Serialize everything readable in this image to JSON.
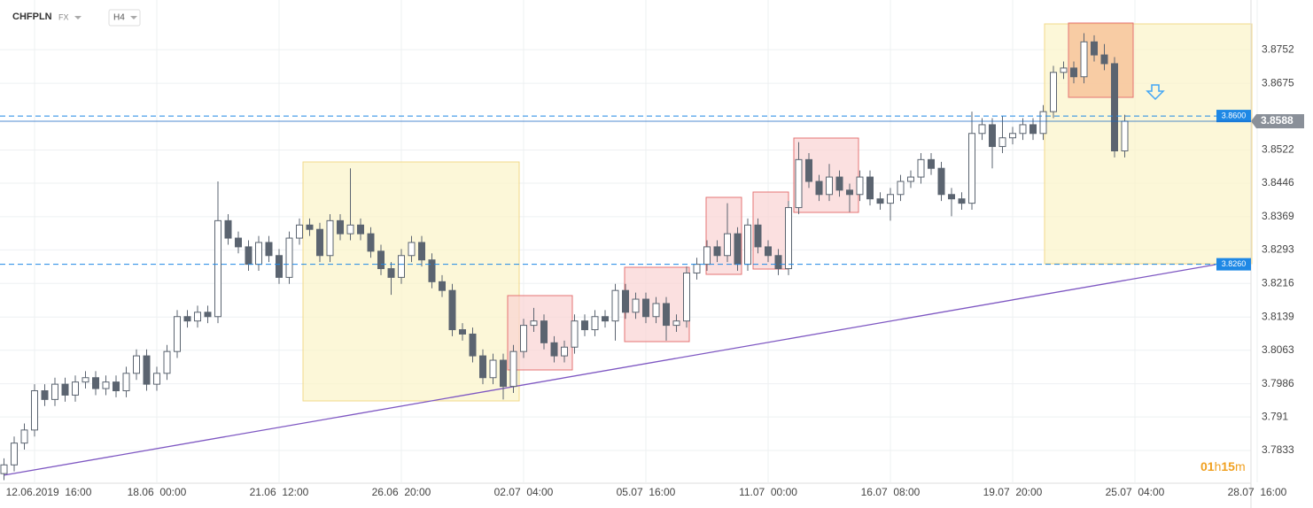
{
  "header": {
    "symbol": "CHFPLN",
    "market": "FX",
    "interval": "H4"
  },
  "timer": {
    "hours": "01",
    "h": "h",
    "minutes": "15",
    "m": "m"
  },
  "chart_data": {
    "type": "candlestick",
    "categories": [
      null,
      null,
      null,
      "12.06.2019  16:00",
      null,
      null,
      null,
      null,
      null,
      null,
      null,
      null,
      null,
      null,
      null,
      "18.06  00:00",
      null,
      null,
      null,
      null,
      null,
      null,
      null,
      null,
      null,
      null,
      null,
      "21.06  12:00",
      null,
      null,
      null,
      null,
      null,
      null,
      null,
      null,
      null,
      null,
      null,
      "26.06  20:00",
      null,
      null,
      null,
      null,
      null,
      null,
      null,
      null,
      null,
      null,
      null,
      "02.07  04:00",
      null,
      null,
      null,
      null,
      null,
      null,
      null,
      null,
      null,
      null,
      null,
      "05.07  16:00",
      null,
      null,
      null,
      null,
      null,
      null,
      null,
      null,
      null,
      null,
      null,
      "11.07  00:00",
      null,
      null,
      null,
      null,
      null,
      null,
      null,
      null,
      null,
      null,
      null,
      "16.07  08:00",
      null,
      null,
      null,
      null,
      null,
      null,
      null,
      null,
      null,
      null,
      null,
      "19.07  20:00",
      null,
      null,
      null,
      null,
      null,
      null,
      null,
      null,
      null,
      null,
      null,
      "25.07  04:00",
      null,
      null,
      null,
      null,
      null,
      null,
      null,
      null,
      null,
      null,
      null,
      "28.07  16:00"
    ],
    "open": [
      3.778,
      3.78,
      3.785,
      3.788,
      3.797,
      3.795,
      3.7985,
      3.796,
      3.799,
      3.8,
      3.7975,
      3.799,
      3.797,
      3.801,
      3.805,
      3.7985,
      3.801,
      3.806,
      3.814,
      3.813,
      3.815,
      3.814,
      3.836,
      3.832,
      3.83,
      3.826,
      3.831,
      3.828,
      3.823,
      3.832,
      3.835,
      3.834,
      3.828,
      3.836,
      3.833,
      3.835,
      3.833,
      3.829,
      3.825,
      3.823,
      3.828,
      3.831,
      3.827,
      3.822,
      3.82,
      3.811,
      3.81,
      3.805,
      3.8,
      3.804,
      3.798,
      3.806,
      3.812,
      3.813,
      3.808,
      3.805,
      3.807,
      3.813,
      3.811,
      3.814,
      3.813,
      3.82,
      3.815,
      3.818,
      3.814,
      3.817,
      3.812,
      3.813,
      3.824,
      3.826,
      3.83,
      3.828,
      3.833,
      3.826,
      3.835,
      3.83,
      3.828,
      3.825,
      3.839,
      3.85,
      3.845,
      3.842,
      3.846,
      3.843,
      3.842,
      3.846,
      3.841,
      3.84,
      3.842,
      3.845,
      3.846,
      3.85,
      3.848,
      3.842,
      3.841,
      3.84,
      3.856,
      3.858,
      3.853,
      3.855,
      3.856,
      3.858,
      3.856,
      3.861,
      3.87,
      3.871,
      3.869,
      3.877,
      3.874,
      3.872,
      3.852,
      null,
      null,
      null,
      null,
      null,
      null,
      null,
      null,
      null,
      null,
      null,
      null,
      null
    ],
    "high": [
      3.7815,
      3.7865,
      3.7895,
      3.7985,
      3.7985,
      3.8,
      3.8,
      3.8005,
      3.8015,
      3.8015,
      3.8005,
      3.8005,
      3.8025,
      3.8065,
      3.8065,
      3.8025,
      3.8075,
      3.8155,
      3.8155,
      3.8165,
      3.8165,
      3.845,
      3.8375,
      3.8335,
      3.8315,
      3.8325,
      3.8325,
      3.8295,
      3.8335,
      3.8365,
      3.8365,
      3.8355,
      3.8375,
      3.8375,
      3.848,
      3.8365,
      3.8345,
      3.8305,
      3.8265,
      3.8295,
      3.8325,
      3.8325,
      3.8285,
      3.8235,
      3.8215,
      3.8125,
      3.8115,
      3.8065,
      3.8055,
      3.8055,
      3.8075,
      3.8135,
      3.816,
      3.8145,
      3.8095,
      3.8085,
      3.8145,
      3.8145,
      3.8155,
      3.8155,
      3.8215,
      3.8215,
      3.8195,
      3.8195,
      3.8185,
      3.8185,
      3.8145,
      3.8255,
      3.8275,
      3.8315,
      3.8315,
      3.84,
      3.8345,
      3.8365,
      3.8365,
      3.8315,
      3.8295,
      3.8405,
      3.854,
      3.8515,
      3.8465,
      3.849,
      3.8475,
      3.8445,
      3.8475,
      3.8475,
      3.8425,
      3.8435,
      3.8465,
      3.8475,
      3.8515,
      3.8515,
      3.8495,
      3.8435,
      3.8425,
      3.861,
      3.8595,
      3.8595,
      3.86,
      3.8575,
      3.8595,
      3.8595,
      3.8625,
      3.8715,
      3.8725,
      3.8725,
      3.879,
      3.8785,
      3.8765,
      3.8735,
      3.8603,
      null,
      null,
      null,
      null,
      null,
      null,
      null,
      null,
      null,
      null,
      null,
      null,
      null
    ],
    "low": [
      3.7765,
      3.7785,
      3.7835,
      3.7865,
      3.7935,
      3.7935,
      3.7945,
      3.7945,
      3.7975,
      3.796,
      3.796,
      3.7955,
      3.7955,
      3.7995,
      3.797,
      3.797,
      3.7995,
      3.8045,
      3.8115,
      3.8115,
      3.8125,
      3.8125,
      3.8305,
      3.8285,
      3.8245,
      3.8245,
      3.8265,
      3.8215,
      3.8215,
      3.8305,
      3.8325,
      3.8265,
      3.8265,
      3.8315,
      3.8315,
      3.8315,
      3.8275,
      3.8235,
      3.819,
      3.8215,
      3.8265,
      3.8255,
      3.8205,
      3.8185,
      3.8095,
      3.8085,
      3.8035,
      3.7985,
      3.7985,
      3.795,
      3.7965,
      3.8045,
      3.8105,
      3.8065,
      3.8035,
      3.8035,
      3.8055,
      3.8095,
      3.8095,
      3.8115,
      3.8085,
      3.8135,
      3.8135,
      3.8125,
      3.8125,
      3.8085,
      3.8105,
      3.8115,
      3.8225,
      3.8245,
      3.8265,
      3.8265,
      3.8245,
      3.8245,
      3.8285,
      3.8265,
      3.8235,
      3.8235,
      3.8375,
      3.8435,
      3.8405,
      3.8405,
      3.8415,
      3.838,
      3.8405,
      3.8395,
      3.8385,
      3.836,
      3.8405,
      3.8435,
      3.8445,
      3.8465,
      3.8405,
      3.837,
      3.8385,
      3.8385,
      3.8545,
      3.848,
      3.8515,
      3.8535,
      3.8545,
      3.8545,
      3.8545,
      3.8595,
      3.8685,
      3.8675,
      3.8675,
      3.8725,
      3.8705,
      3.8505,
      3.8505,
      null,
      null,
      null,
      null,
      null,
      null,
      null,
      null,
      null,
      null,
      null,
      null,
      null
    ],
    "close": [
      3.78,
      3.785,
      3.788,
      3.797,
      3.795,
      3.7985,
      3.796,
      3.799,
      3.8,
      3.7975,
      3.799,
      3.797,
      3.801,
      3.805,
      3.7985,
      3.801,
      3.806,
      3.814,
      3.813,
      3.815,
      3.814,
      3.836,
      3.832,
      3.83,
      3.826,
      3.831,
      3.828,
      3.823,
      3.832,
      3.835,
      3.834,
      3.828,
      3.836,
      3.833,
      3.835,
      3.833,
      3.829,
      3.825,
      3.823,
      3.828,
      3.831,
      3.827,
      3.822,
      3.82,
      3.811,
      3.81,
      3.805,
      3.8,
      3.804,
      3.798,
      3.806,
      3.812,
      3.813,
      3.808,
      3.805,
      3.807,
      3.813,
      3.811,
      3.814,
      3.813,
      3.82,
      3.815,
      3.818,
      3.814,
      3.817,
      3.812,
      3.813,
      3.824,
      3.826,
      3.83,
      3.828,
      3.833,
      3.826,
      3.835,
      3.83,
      3.828,
      3.825,
      3.839,
      3.85,
      3.845,
      3.842,
      3.846,
      3.843,
      3.842,
      3.846,
      3.841,
      3.84,
      3.842,
      3.845,
      3.846,
      3.85,
      3.848,
      3.842,
      3.841,
      3.84,
      3.856,
      3.858,
      3.853,
      3.855,
      3.856,
      3.858,
      3.856,
      3.861,
      3.87,
      3.871,
      3.869,
      3.877,
      3.874,
      3.872,
      3.852,
      3.8588,
      null,
      null,
      null,
      null,
      null,
      null,
      null,
      null,
      null,
      null,
      null,
      null,
      null
    ],
    "up_color": "#ffffff",
    "down_color": "#5b6470",
    "wick_color": "#5b6470",
    "ylim": [
      3.776,
      3.8866
    ],
    "yticks": [
      3.7833,
      3.791,
      3.7986,
      3.8063,
      3.8139,
      3.8216,
      3.8293,
      3.8369,
      3.8446,
      3.8522,
      3.8675,
      3.8752
    ],
    "grid": true,
    "levels": {
      "values": [
        3.86,
        3.826
      ],
      "value_labels": [
        "3.8600",
        "3.8260"
      ],
      "color": "#1e88e5"
    },
    "last_price": 3.8588
  }
}
